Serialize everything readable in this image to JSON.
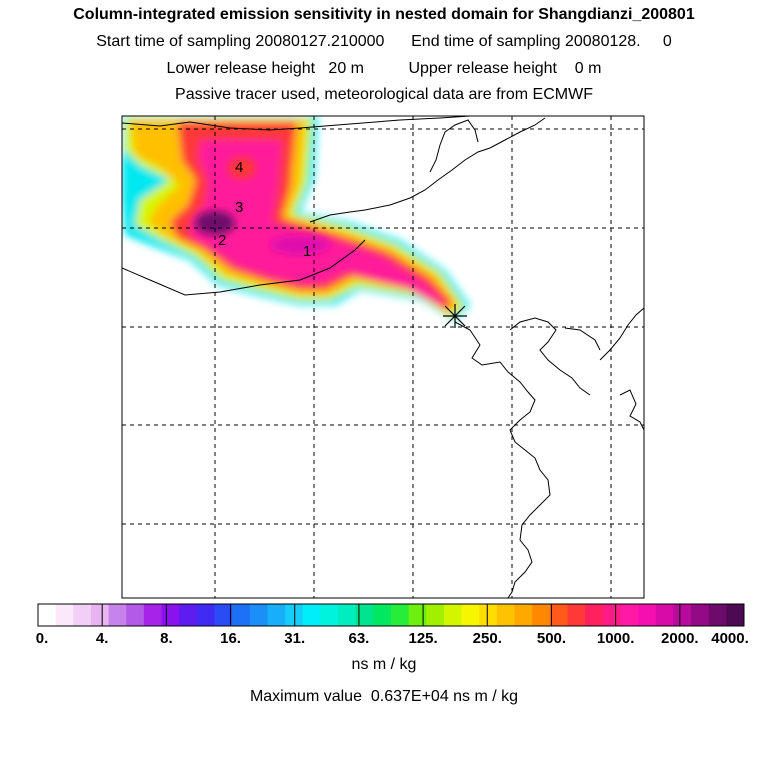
{
  "header": {
    "title": "Column-integrated emission sensitivity in nested domain for Shangdianzi_200801",
    "sampling": "Start time of sampling 20080127.210000      End time of sampling 20080128.     0",
    "release": "Lower release height   20 m          Upper release height    0 m",
    "tracer": "Passive tracer used, meteorological data are from ECMWF"
  },
  "map": {
    "markers": [
      {
        "label": "1",
        "name": "label-1"
      },
      {
        "label": "2",
        "name": "label-2"
      },
      {
        "label": "3",
        "name": "label-3"
      },
      {
        "label": "4",
        "name": "label-4"
      }
    ],
    "receptor_symbol": "station-marker"
  },
  "colorbar": {
    "tick_labels": [
      "0.",
      "4.",
      "8.",
      "16.",
      "31.",
      "63.",
      "125.",
      "250.",
      "500.",
      "1000.",
      "2000.",
      "4000."
    ],
    "colors": [
      "#ffffff",
      "#fbe8fb",
      "#f2cff5",
      "#e8b4f1",
      "#c684ea",
      "#b35ae8",
      "#a623ea",
      "#8a12ee",
      "#5f1cf1",
      "#3f2bf3",
      "#2a4cf6",
      "#1d71f6",
      "#1b8ff8",
      "#18aef9",
      "#14cdf9",
      "#00eefa",
      "#00f4dd",
      "#00eebf",
      "#00e48e",
      "#00e85f",
      "#28ec3a",
      "#6ef00f",
      "#a0f000",
      "#d1f600",
      "#f6f600",
      "#ffdd00",
      "#ffc200",
      "#ffa800",
      "#ff8800",
      "#ff5a1a",
      "#ff3838",
      "#ff2060",
      "#ff1a88",
      "#ff1aa6",
      "#f50fb1",
      "#d80aa8",
      "#b80a9c",
      "#930a86",
      "#6e0a6c",
      "#4d0a52"
    ],
    "units": "ns m / kg",
    "max_value_text": "Maximum value  0.637E+04 ns m / kg"
  }
}
